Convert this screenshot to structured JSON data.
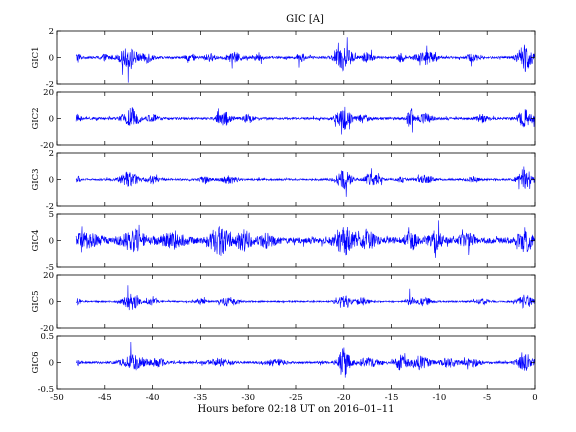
{
  "chart_data": {
    "type": "line",
    "title": "GIC [A]",
    "xlabel": "Hours before  02:18 UT on 2016–01–11",
    "xlim": [
      -50,
      0
    ],
    "xticks": [
      -50,
      -45,
      -40,
      -35,
      -30,
      -25,
      -20,
      -15,
      -10,
      -5,
      0
    ],
    "data_x_range": [
      -48,
      0
    ],
    "grid": false,
    "color": "#0000ff",
    "panels": [
      {
        "ylabel": "GIC1",
        "ylim": [
          -2,
          2
        ],
        "yticks": [
          -2,
          0,
          2
        ],
        "base_amplitude": 0.12,
        "bursts": [
          {
            "center": -47.8,
            "width": 0.3,
            "amp": 0.5
          },
          {
            "center": -45.0,
            "width": 0.6,
            "amp": 0.3
          },
          {
            "center": -42.5,
            "width": 1.0,
            "amp": 1.0
          },
          {
            "center": -40.5,
            "width": 0.6,
            "amp": 0.5
          },
          {
            "center": -36.0,
            "width": 0.5,
            "amp": 0.35
          },
          {
            "center": -34.0,
            "width": 0.6,
            "amp": 0.35
          },
          {
            "center": -31.5,
            "width": 0.8,
            "amp": 0.5
          },
          {
            "center": -29.0,
            "width": 0.6,
            "amp": 0.3
          },
          {
            "center": -24.5,
            "width": 0.4,
            "amp": 0.5
          },
          {
            "center": -20.0,
            "width": 0.8,
            "amp": 1.6
          },
          {
            "center": -17.5,
            "width": 0.6,
            "amp": 0.5
          },
          {
            "center": -14.0,
            "width": 0.4,
            "amp": 0.5
          },
          {
            "center": -11.5,
            "width": 1.0,
            "amp": 0.7
          },
          {
            "center": -6.5,
            "width": 0.6,
            "amp": 0.4
          },
          {
            "center": -1.0,
            "width": 0.8,
            "amp": 1.4
          }
        ]
      },
      {
        "ylabel": "GIC2",
        "ylim": [
          -20,
          20
        ],
        "yticks": [
          -20,
          0,
          20
        ],
        "base_amplitude": 1.2,
        "bursts": [
          {
            "center": -47.8,
            "width": 0.3,
            "amp": 4
          },
          {
            "center": -42.3,
            "width": 0.8,
            "amp": 12
          },
          {
            "center": -40.0,
            "width": 0.6,
            "amp": 4
          },
          {
            "center": -32.5,
            "width": 0.8,
            "amp": 8
          },
          {
            "center": -30.0,
            "width": 0.5,
            "amp": 4
          },
          {
            "center": -20.0,
            "width": 0.8,
            "amp": 11
          },
          {
            "center": -18.0,
            "width": 0.6,
            "amp": 4
          },
          {
            "center": -13.0,
            "width": 0.3,
            "amp": 12
          },
          {
            "center": -11.5,
            "width": 0.8,
            "amp": 5
          },
          {
            "center": -5.5,
            "width": 0.6,
            "amp": 4
          },
          {
            "center": -1.0,
            "width": 0.8,
            "amp": 9
          }
        ]
      },
      {
        "ylabel": "GIC3",
        "ylim": [
          -2,
          2
        ],
        "yticks": [
          -2,
          0,
          2
        ],
        "base_amplitude": 0.1,
        "bursts": [
          {
            "center": -47.8,
            "width": 0.3,
            "amp": 0.3
          },
          {
            "center": -42.5,
            "width": 1.0,
            "amp": 0.7
          },
          {
            "center": -40.0,
            "width": 0.6,
            "amp": 0.4
          },
          {
            "center": -34.5,
            "width": 0.6,
            "amp": 0.3
          },
          {
            "center": -32.0,
            "width": 0.8,
            "amp": 0.4
          },
          {
            "center": -20.0,
            "width": 0.8,
            "amp": 1.0
          },
          {
            "center": -17.0,
            "width": 0.8,
            "amp": 0.6
          },
          {
            "center": -14.0,
            "width": 0.4,
            "amp": 0.3
          },
          {
            "center": -11.5,
            "width": 0.8,
            "amp": 0.4
          },
          {
            "center": -6.5,
            "width": 0.6,
            "amp": 0.3
          },
          {
            "center": -1.0,
            "width": 0.8,
            "amp": 1.0
          }
        ]
      },
      {
        "ylabel": "GIC4",
        "ylim": [
          -5,
          5
        ],
        "yticks": [
          -5,
          0,
          5
        ],
        "base_amplitude": 0.8,
        "bursts": [
          {
            "center": -47.0,
            "width": 1.5,
            "amp": 1.5
          },
          {
            "center": -42.0,
            "width": 1.2,
            "amp": 2.5
          },
          {
            "center": -38.0,
            "width": 1.5,
            "amp": 1.5
          },
          {
            "center": -33.0,
            "width": 1.0,
            "amp": 3.5
          },
          {
            "center": -30.5,
            "width": 0.8,
            "amp": 2.5
          },
          {
            "center": -28.0,
            "width": 0.8,
            "amp": 1.5
          },
          {
            "center": -20.0,
            "width": 1.0,
            "amp": 3.5
          },
          {
            "center": -17.5,
            "width": 0.8,
            "amp": 2.0
          },
          {
            "center": -13.0,
            "width": 0.6,
            "amp": 2.2
          },
          {
            "center": -10.5,
            "width": 0.8,
            "amp": 2.0
          },
          {
            "center": -7.0,
            "width": 0.8,
            "amp": 1.5
          },
          {
            "center": -1.0,
            "width": 0.8,
            "amp": 2.5
          }
        ]
      },
      {
        "ylabel": "GIC5",
        "ylim": [
          -20,
          20
        ],
        "yticks": [
          -20,
          0,
          20
        ],
        "base_amplitude": 0.8,
        "bursts": [
          {
            "center": -47.8,
            "width": 0.3,
            "amp": 3
          },
          {
            "center": -42.3,
            "width": 0.8,
            "amp": 10
          },
          {
            "center": -40.0,
            "width": 0.6,
            "amp": 4
          },
          {
            "center": -35.0,
            "width": 0.6,
            "amp": 3
          },
          {
            "center": -32.0,
            "width": 0.8,
            "amp": 5
          },
          {
            "center": -20.0,
            "width": 0.8,
            "amp": 7
          },
          {
            "center": -18.0,
            "width": 0.6,
            "amp": 4
          },
          {
            "center": -13.0,
            "width": 0.3,
            "amp": 8
          },
          {
            "center": -11.5,
            "width": 0.8,
            "amp": 4
          },
          {
            "center": -5.5,
            "width": 0.6,
            "amp": 3
          },
          {
            "center": -1.0,
            "width": 0.8,
            "amp": 7
          }
        ]
      },
      {
        "ylabel": "GIC6",
        "ylim": [
          -0.5,
          0.5
        ],
        "yticks": [
          -0.5,
          0,
          0.5
        ],
        "base_amplitude": 0.03,
        "bursts": [
          {
            "center": -47.8,
            "width": 0.3,
            "amp": 0.06
          },
          {
            "center": -42.0,
            "width": 1.2,
            "amp": 0.2
          },
          {
            "center": -39.5,
            "width": 0.8,
            "amp": 0.1
          },
          {
            "center": -33.0,
            "width": 1.2,
            "amp": 0.1
          },
          {
            "center": -27.0,
            "width": 1.0,
            "amp": 0.08
          },
          {
            "center": -20.0,
            "width": 0.6,
            "amp": 0.4
          },
          {
            "center": -17.5,
            "width": 1.2,
            "amp": 0.12
          },
          {
            "center": -14.0,
            "width": 0.6,
            "amp": 0.2
          },
          {
            "center": -12.0,
            "width": 1.0,
            "amp": 0.18
          },
          {
            "center": -9.0,
            "width": 1.0,
            "amp": 0.12
          },
          {
            "center": -6.5,
            "width": 0.8,
            "amp": 0.1
          },
          {
            "center": -1.0,
            "width": 0.8,
            "amp": 0.25
          }
        ]
      }
    ]
  }
}
